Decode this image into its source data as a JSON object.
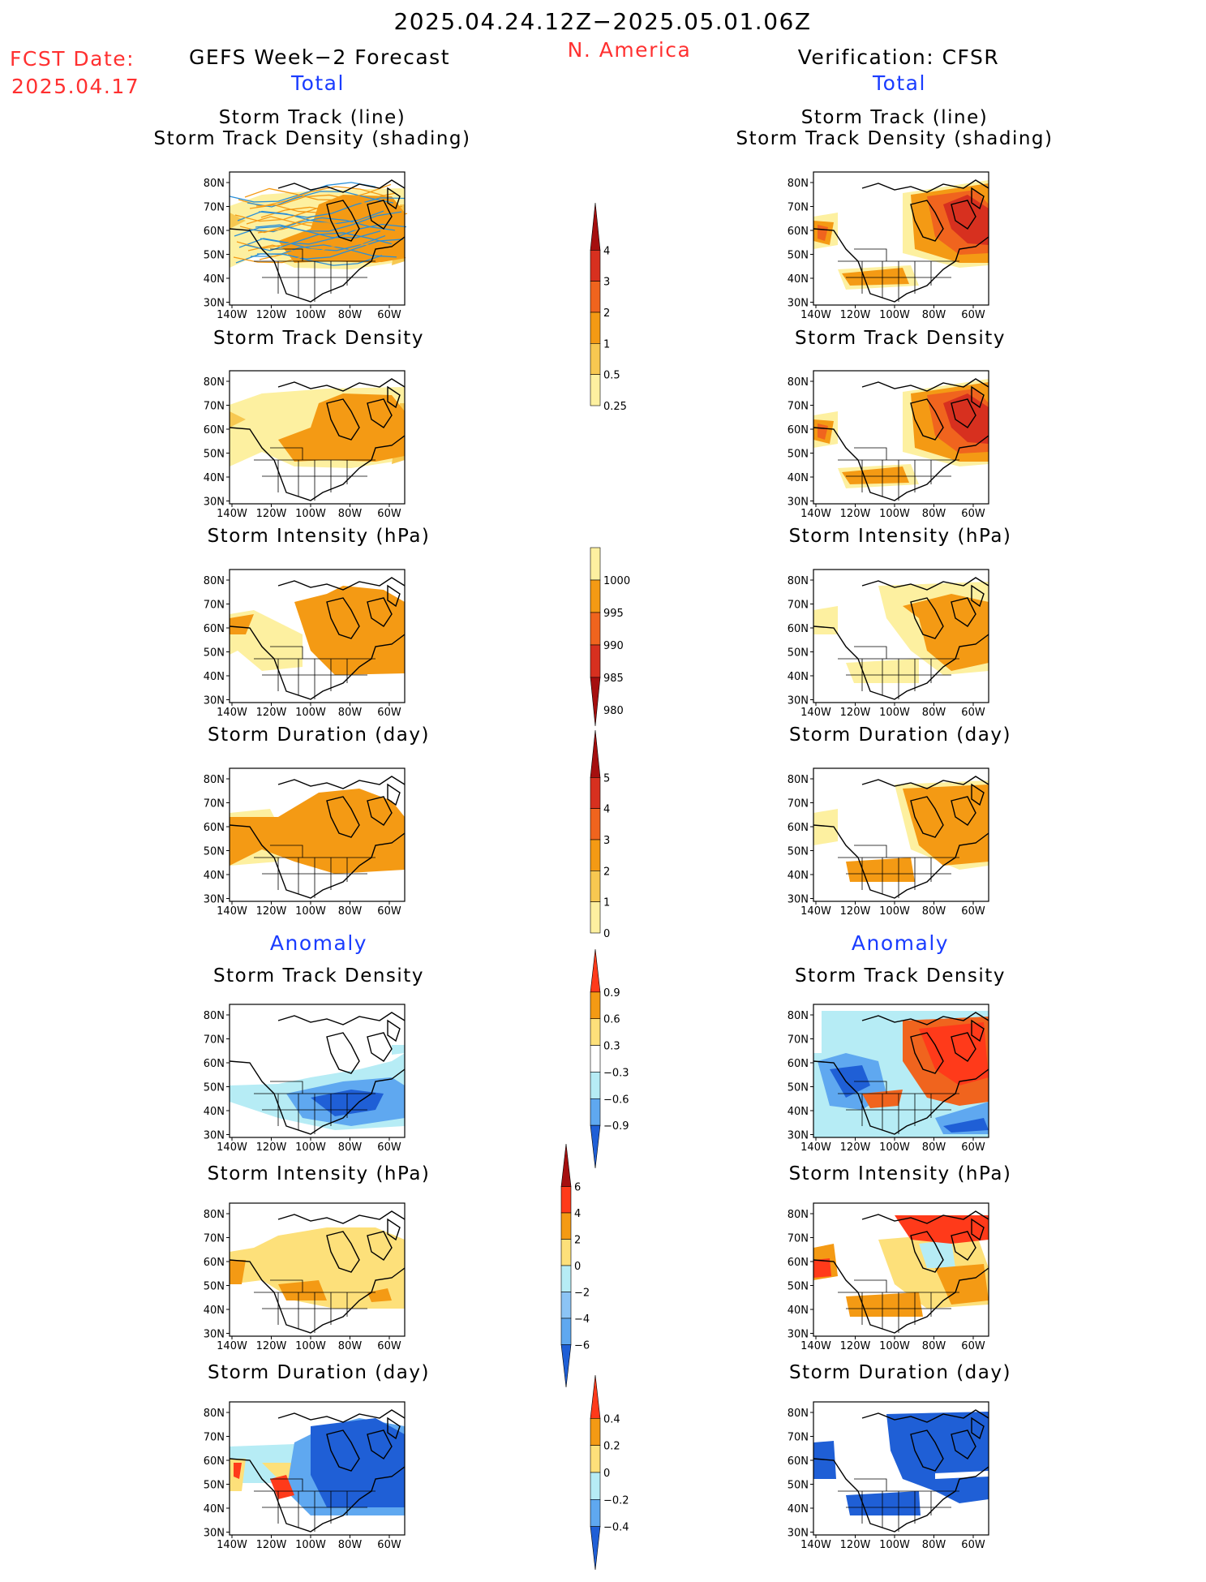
{
  "header": {
    "date_range": "2025.04.24.12Z−2025.05.01.06Z",
    "region": "N. America",
    "fcst_label": "FCST Date:",
    "fcst_date": "2025.04.17",
    "left_title": "GEFS Week−2 Forecast",
    "right_title": "Verification: CFSR"
  },
  "sections": {
    "total": "Total",
    "anomaly": "Anomaly"
  },
  "panel_titles": {
    "track_line": "Storm Track (line)",
    "track_shading": "Storm Track Density (shading)",
    "density": "Storm Track Density",
    "intensity": "Storm Intensity (hPa)",
    "duration": "Storm Duration (day)"
  },
  "axis_labels": {
    "lat": [
      "80N",
      "70N",
      "60N",
      "50N",
      "40N",
      "30N"
    ],
    "lon": [
      "140W",
      "120W",
      "100W",
      "80W",
      "60W"
    ]
  },
  "colorbars": {
    "density_total": {
      "labels": [
        "4",
        "3",
        "2",
        "1",
        "0.5",
        "0.25"
      ],
      "colors": [
        "#a50f0f",
        "#d7301f",
        "#f0641e",
        "#f49a14",
        "#f7c851",
        "#fdf0a0"
      ]
    },
    "intensity_total": {
      "labels": [
        "1000",
        "995",
        "990",
        "985",
        "980"
      ],
      "colors": [
        "#fdf0a0",
        "#f49a14",
        "#f0641e",
        "#d7301f",
        "#a50f0f"
      ]
    },
    "duration_total": {
      "labels": [
        "5",
        "4",
        "3",
        "2",
        "1",
        "0"
      ],
      "colors": [
        "#a50f0f",
        "#d7301f",
        "#f0641e",
        "#f49a14",
        "#f7c851",
        "#fdf0a0"
      ]
    },
    "density_anom": {
      "labels": [
        "0.9",
        "0.6",
        "0.3",
        "−0.3",
        "−0.6",
        "−0.9"
      ],
      "colors": [
        "#ff3a1a",
        "#f49a14",
        "#fde07a",
        "#ffffff",
        "#b6ecf5",
        "#5fa8f0",
        "#1f5fd6"
      ]
    },
    "intensity_anom": {
      "labels": [
        "6",
        "4",
        "2",
        "0",
        "−2",
        "−4",
        "−6"
      ],
      "colors": [
        "#a50f0f",
        "#ff3a1a",
        "#f49a14",
        "#fde07a",
        "#b6ecf5",
        "#8cc4f5",
        "#5fa8f0",
        "#1f5fd6"
      ]
    },
    "duration_anom": {
      "labels": [
        "0.4",
        "0.2",
        "0",
        "−0.2",
        "−0.4"
      ],
      "colors": [
        "#ff3a1a",
        "#f49a14",
        "#fde07a",
        "#b6ecf5",
        "#5fa8f0",
        "#1f5fd6"
      ]
    }
  },
  "palette": {
    "light_yellow": "#fdf0a0",
    "yellow": "#f7c851",
    "orange": "#f49a14",
    "dark_orange": "#f0641e",
    "red": "#d7301f",
    "dark_red": "#a50f0f",
    "light_blue": "#b6ecf5",
    "mid_blue": "#5fa8f0",
    "dark_blue": "#1f5fd6",
    "track_blue": "#2a8fd8"
  }
}
